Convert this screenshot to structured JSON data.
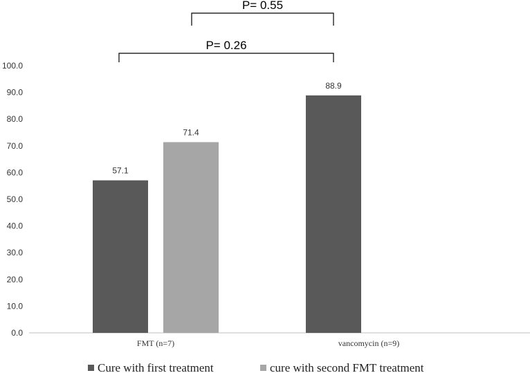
{
  "chart_data": {
    "type": "bar",
    "categories": [
      "FMT (n=7)",
      "vancomycin (n=9)"
    ],
    "series": [
      {
        "name": "Cure with first treatment",
        "values": [
          57.1,
          88.9
        ],
        "color": "#595959"
      },
      {
        "name": "cure with second FMT treatment",
        "values": [
          71.4,
          null
        ],
        "color": "#a6a6a6"
      }
    ],
    "ylim": [
      0,
      100
    ],
    "yticks": [
      "0.0",
      "10.0",
      "20.0",
      "30.0",
      "40.0",
      "50.0",
      "60.0",
      "70.0",
      "80.0",
      "90.0",
      "100.0"
    ],
    "data_labels": [
      "57.1",
      "71.4",
      "88.9"
    ],
    "annotations": [
      {
        "text": "P= 0.55",
        "from": "FMT (n=7) / cure with second FMT treatment",
        "to": "vancomycin (n=9) / Cure with first treatment"
      },
      {
        "text": "P= 0.26",
        "from": "FMT (n=7) / Cure with first treatment",
        "to": "vancomycin (n=9) / Cure with first treatment"
      }
    ],
    "legend_position": "bottom",
    "grid": false
  }
}
